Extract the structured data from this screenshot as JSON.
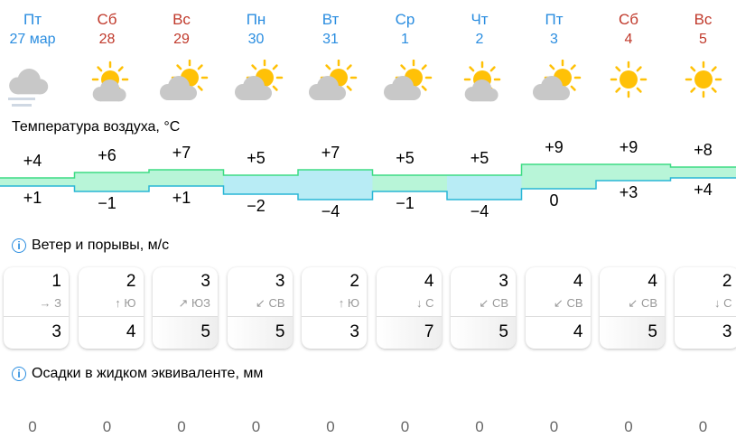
{
  "days": [
    {
      "dow": "Пт",
      "date": "27 мар",
      "weekend": false,
      "icon": "cloudy-fog-icon",
      "t_high": 4,
      "t_low": 1,
      "high": "+4",
      "low": "+1",
      "wind": "1",
      "dir_arrow": "→",
      "dir": "З",
      "gust": "3",
      "precip": "0"
    },
    {
      "dow": "Сб",
      "date": "28",
      "weekend": true,
      "icon": "sun-cloud-icon",
      "t_high": 6,
      "t_low": -1,
      "high": "+6",
      "low": "−1",
      "wind": "2",
      "dir_arrow": "↑",
      "dir": "Ю",
      "gust": "4",
      "precip": "0"
    },
    {
      "dow": "Вс",
      "date": "29",
      "weekend": true,
      "icon": "cloud-sun-icon",
      "t_high": 7,
      "t_low": 1,
      "high": "+7",
      "low": "+1",
      "wind": "3",
      "dir_arrow": "↗",
      "dir": "ЮЗ",
      "gust": "5",
      "precip": "0"
    },
    {
      "dow": "Пн",
      "date": "30",
      "weekend": false,
      "icon": "cloud-sun-icon",
      "t_high": 5,
      "t_low": -2,
      "high": "+5",
      "low": "−2",
      "wind": "3",
      "dir_arrow": "↙",
      "dir": "СВ",
      "gust": "5",
      "precip": "0"
    },
    {
      "dow": "Вт",
      "date": "31",
      "weekend": false,
      "icon": "cloud-sun-icon",
      "t_high": 7,
      "t_low": -4,
      "high": "+7",
      "low": "−4",
      "wind": "2",
      "dir_arrow": "↑",
      "dir": "Ю",
      "gust": "3",
      "precip": "0"
    },
    {
      "dow": "Ср",
      "date": "1",
      "weekend": false,
      "icon": "cloud-sun-icon",
      "t_high": 5,
      "t_low": -1,
      "high": "+5",
      "low": "−1",
      "wind": "4",
      "dir_arrow": "↓",
      "dir": "С",
      "gust": "7",
      "precip": "0"
    },
    {
      "dow": "Чт",
      "date": "2",
      "weekend": false,
      "icon": "sun-cloud-icon",
      "t_high": 5,
      "t_low": -4,
      "high": "+5",
      "low": "−4",
      "wind": "3",
      "dir_arrow": "↙",
      "dir": "СВ",
      "gust": "5",
      "precip": "0"
    },
    {
      "dow": "Пт",
      "date": "3",
      "weekend": false,
      "icon": "cloud-sun-icon",
      "t_high": 9,
      "t_low": 0,
      "high": "+9",
      "low": "0",
      "wind": "4",
      "dir_arrow": "↙",
      "dir": "СВ",
      "gust": "4",
      "precip": "0"
    },
    {
      "dow": "Сб",
      "date": "4",
      "weekend": true,
      "icon": "sun-icon",
      "t_high": 9,
      "t_low": 3,
      "high": "+9",
      "low": "+3",
      "wind": "4",
      "dir_arrow": "↙",
      "dir": "СВ",
      "gust": "5",
      "precip": "0"
    },
    {
      "dow": "Вс",
      "date": "5",
      "weekend": true,
      "icon": "sun-icon",
      "t_high": 8,
      "t_low": 4,
      "high": "+8",
      "low": "+4",
      "wind": "2",
      "dir_arrow": "↓",
      "dir": "С",
      "gust": "3",
      "precip": "0"
    }
  ],
  "sections": {
    "temp": "Температура воздуха, °C",
    "wind": "Ветер и порывы, м/с",
    "precip": "Осадки в жидком эквиваленте, мм"
  },
  "colors": {
    "weekday": "#2a8de0",
    "weekend": "#c0392b",
    "band_warm": "#b8f5d8",
    "band_cold": "#b8ecf5"
  }
}
